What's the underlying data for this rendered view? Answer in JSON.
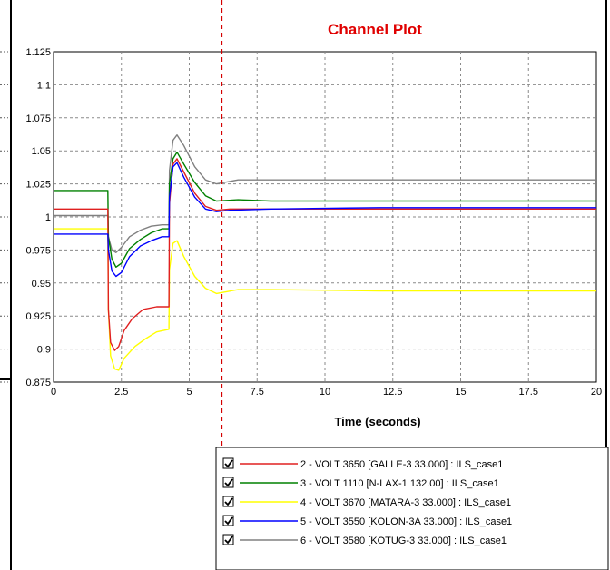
{
  "chart_data": {
    "type": "line",
    "title": "Channel Plot",
    "xlabel": "Time (seconds)",
    "ylabel": "",
    "xlim": [
      0,
      20
    ],
    "ylim": [
      0.875,
      1.125
    ],
    "x_ticks": [
      "0",
      "2.5",
      "5",
      "7.5",
      "10",
      "12.5",
      "15",
      "17.5",
      "20"
    ],
    "y_ticks": [
      "0.875",
      "0.9",
      "0.925",
      "0.95",
      "0.975",
      "1",
      "1.025",
      "1.05",
      "1.075",
      "1.1",
      "1.125"
    ],
    "grid": true,
    "marker_line_x": 6.2,
    "legend_position": "bottom-right",
    "series": [
      {
        "name": "2 - VOLT   3650 [GALLE-3     33.000] : ILS_case1",
        "color": "#e02020",
        "points": [
          [
            0,
            1.006
          ],
          [
            2.0,
            1.006
          ],
          [
            2.02,
            0.93
          ],
          [
            2.1,
            0.905
          ],
          [
            2.25,
            0.899
          ],
          [
            2.4,
            0.902
          ],
          [
            2.6,
            0.914
          ],
          [
            2.9,
            0.923
          ],
          [
            3.3,
            0.93
          ],
          [
            3.8,
            0.932
          ],
          [
            4.25,
            0.932
          ],
          [
            4.27,
            1.01
          ],
          [
            4.4,
            1.04
          ],
          [
            4.55,
            1.044
          ],
          [
            4.8,
            1.034
          ],
          [
            5.2,
            1.018
          ],
          [
            5.6,
            1.008
          ],
          [
            6.0,
            1.005
          ],
          [
            6.5,
            1.006
          ],
          [
            8,
            1.006
          ],
          [
            12,
            1.006
          ],
          [
            20,
            1.006
          ]
        ]
      },
      {
        "name": "3 - VOLT   1110 [N-LAX-1     132.00] : ILS_case1",
        "color": "#008000",
        "points": [
          [
            0,
            1.02
          ],
          [
            2.0,
            1.02
          ],
          [
            2.02,
            0.985
          ],
          [
            2.15,
            0.968
          ],
          [
            2.3,
            0.962
          ],
          [
            2.5,
            0.965
          ],
          [
            2.8,
            0.976
          ],
          [
            3.2,
            0.983
          ],
          [
            3.6,
            0.988
          ],
          [
            4.0,
            0.991
          ],
          [
            4.25,
            0.991
          ],
          [
            4.27,
            1.025
          ],
          [
            4.4,
            1.044
          ],
          [
            4.55,
            1.049
          ],
          [
            4.8,
            1.04
          ],
          [
            5.2,
            1.026
          ],
          [
            5.6,
            1.016
          ],
          [
            6.0,
            1.012
          ],
          [
            6.8,
            1.013
          ],
          [
            8,
            1.012
          ],
          [
            12,
            1.012
          ],
          [
            20,
            1.012
          ]
        ]
      },
      {
        "name": "4 - VOLT   3670 [MATARA-3     33.000] : ILS_case1",
        "color": "#ffff00",
        "points": [
          [
            0,
            0.991
          ],
          [
            2.0,
            0.991
          ],
          [
            2.02,
            0.93
          ],
          [
            2.1,
            0.895
          ],
          [
            2.25,
            0.885
          ],
          [
            2.4,
            0.884
          ],
          [
            2.6,
            0.893
          ],
          [
            3.0,
            0.902
          ],
          [
            3.4,
            0.908
          ],
          [
            3.8,
            0.913
          ],
          [
            4.25,
            0.915
          ],
          [
            4.27,
            0.96
          ],
          [
            4.4,
            0.98
          ],
          [
            4.55,
            0.982
          ],
          [
            4.8,
            0.97
          ],
          [
            5.2,
            0.955
          ],
          [
            5.6,
            0.946
          ],
          [
            6.0,
            0.942
          ],
          [
            6.8,
            0.945
          ],
          [
            8,
            0.945
          ],
          [
            12,
            0.944
          ],
          [
            20,
            0.944
          ]
        ]
      },
      {
        "name": "5 - VOLT   3550 [KOLON-3A     33.000] : ILS_case1",
        "color": "#0000ff",
        "points": [
          [
            0,
            0.987
          ],
          [
            2.0,
            0.987
          ],
          [
            2.02,
            0.975
          ],
          [
            2.15,
            0.959
          ],
          [
            2.3,
            0.955
          ],
          [
            2.5,
            0.958
          ],
          [
            2.8,
            0.97
          ],
          [
            3.2,
            0.978
          ],
          [
            3.6,
            0.982
          ],
          [
            4.0,
            0.985
          ],
          [
            4.25,
            0.985
          ],
          [
            4.27,
            1.015
          ],
          [
            4.4,
            1.038
          ],
          [
            4.55,
            1.041
          ],
          [
            4.8,
            1.03
          ],
          [
            5.2,
            1.015
          ],
          [
            5.6,
            1.006
          ],
          [
            6.0,
            1.004
          ],
          [
            6.5,
            1.005
          ],
          [
            8,
            1.006
          ],
          [
            12,
            1.007
          ],
          [
            20,
            1.007
          ]
        ]
      },
      {
        "name": "6 - VOLT   3580 [KOTUG-3     33.000] : ILS_case1",
        "color": "#808080",
        "points": [
          [
            0,
            1.001
          ],
          [
            2.0,
            1.001
          ],
          [
            2.02,
            0.985
          ],
          [
            2.15,
            0.975
          ],
          [
            2.3,
            0.973
          ],
          [
            2.5,
            0.977
          ],
          [
            2.8,
            0.985
          ],
          [
            3.2,
            0.99
          ],
          [
            3.6,
            0.993
          ],
          [
            4.0,
            0.994
          ],
          [
            4.25,
            0.994
          ],
          [
            4.27,
            1.035
          ],
          [
            4.4,
            1.058
          ],
          [
            4.55,
            1.062
          ],
          [
            4.8,
            1.054
          ],
          [
            5.2,
            1.038
          ],
          [
            5.6,
            1.028
          ],
          [
            6.0,
            1.025
          ],
          [
            6.8,
            1.028
          ],
          [
            8,
            1.028
          ],
          [
            12,
            1.028
          ],
          [
            20,
            1.028
          ]
        ]
      }
    ]
  }
}
